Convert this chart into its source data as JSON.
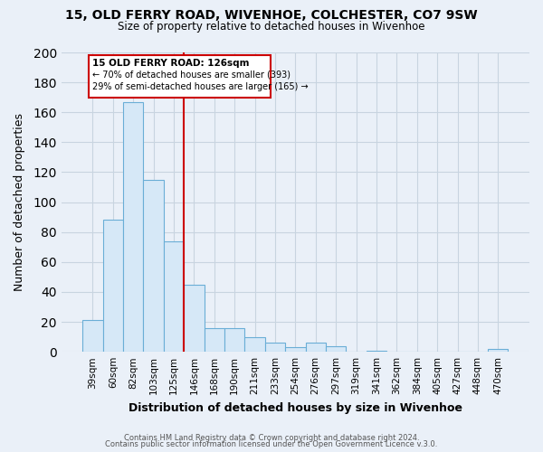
{
  "title_line1": "15, OLD FERRY ROAD, WIVENHOE, COLCHESTER, CO7 9SW",
  "title_line2": "Size of property relative to detached houses in Wivenhoe",
  "xlabel": "Distribution of detached houses by size in Wivenhoe",
  "ylabel": "Number of detached properties",
  "bar_labels": [
    "39sqm",
    "60sqm",
    "82sqm",
    "103sqm",
    "125sqm",
    "146sqm",
    "168sqm",
    "190sqm",
    "211sqm",
    "233sqm",
    "254sqm",
    "276sqm",
    "297sqm",
    "319sqm",
    "341sqm",
    "362sqm",
    "384sqm",
    "405sqm",
    "427sqm",
    "448sqm",
    "470sqm"
  ],
  "bar_values": [
    21,
    88,
    167,
    115,
    74,
    45,
    16,
    16,
    10,
    6,
    3,
    6,
    4,
    0,
    1,
    0,
    0,
    0,
    0,
    0,
    2
  ],
  "bar_color_fill": "#d6e8f7",
  "bar_color_edge": "#6aaed6",
  "annotation_text_line1": "15 OLD FERRY ROAD: 126sqm",
  "annotation_text_line2": "← 70% of detached houses are smaller (393)",
  "annotation_text_line3": "29% of semi-detached houses are larger (165) →",
  "vline_after_index": 4,
  "ylim": [
    0,
    200
  ],
  "yticks": [
    0,
    20,
    40,
    60,
    80,
    100,
    120,
    140,
    160,
    180,
    200
  ],
  "footer_line1": "Contains HM Land Registry data © Crown copyright and database right 2024.",
  "footer_line2": "Contains public sector information licensed under the Open Government Licence v.3.0.",
  "bg_color": "#eaf0f8",
  "plot_bg_color": "#eaf0f8",
  "grid_color": "#c8d4e0"
}
